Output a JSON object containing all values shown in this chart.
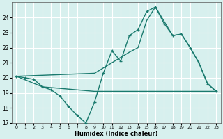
{
  "xlabel": "Humidex (Indice chaleur)",
  "xlim": [
    -0.5,
    23.5
  ],
  "ylim": [
    17,
    25
  ],
  "yticks": [
    17,
    18,
    19,
    20,
    21,
    22,
    23,
    24
  ],
  "xticks": [
    0,
    1,
    2,
    3,
    4,
    5,
    6,
    7,
    8,
    9,
    10,
    11,
    12,
    13,
    14,
    15,
    16,
    17,
    18,
    19,
    20,
    21,
    22,
    23
  ],
  "bg_color": "#d7f0ee",
  "line_color": "#1a7a6e",
  "grid_color": "#ffffff",
  "line1_x": [
    0,
    1,
    2,
    3,
    4,
    5,
    6,
    7,
    8,
    9,
    10,
    11,
    12,
    13,
    14,
    15,
    16,
    17,
    18,
    19,
    20,
    21,
    22,
    23
  ],
  "line1_y": [
    20.1,
    20.0,
    19.9,
    19.4,
    19.2,
    18.8,
    18.1,
    17.5,
    17.0,
    18.4,
    20.3,
    21.8,
    21.1,
    22.8,
    23.2,
    24.4,
    24.7,
    23.6,
    22.8,
    22.9,
    22.0,
    21.0,
    19.6,
    19.1
  ],
  "line2_x": [
    0,
    3,
    9,
    19,
    22,
    23
  ],
  "line2_y": [
    20.1,
    19.4,
    19.1,
    19.1,
    19.1,
    19.1
  ],
  "line3_x": [
    0,
    9,
    13,
    14,
    15,
    16,
    18,
    19,
    20,
    21,
    22,
    23
  ],
  "line3_y": [
    20.1,
    20.3,
    21.7,
    22.0,
    23.8,
    24.7,
    22.8,
    22.9,
    22.0,
    21.0,
    19.6,
    19.1
  ]
}
